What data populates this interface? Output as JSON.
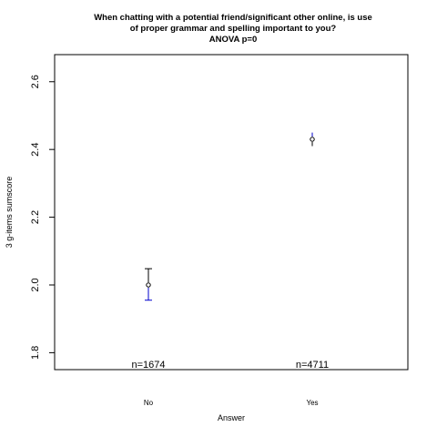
{
  "chart_data": {
    "type": "scatter",
    "title_lines": [
      "When chatting with a potential friend/significant other online, is use",
      "of proper grammar and spelling important to you?",
      "ANOVA p=0"
    ],
    "xlabel": "Answer",
    "ylabel": "3 g-items sumscore",
    "categories": [
      "No",
      "Yes"
    ],
    "means": [
      2.0,
      2.43
    ],
    "ci_lower": [
      1.955,
      2.41
    ],
    "ci_upper": [
      2.048,
      2.45
    ],
    "n_labels": [
      "n=1674",
      "n=4711"
    ],
    "ylim": [
      1.75,
      2.68
    ],
    "yticks": [
      1.8,
      2.0,
      2.2,
      2.4,
      2.6
    ],
    "ytick_labels": [
      "1.8",
      "2.0",
      "2.2",
      "2.4",
      "2.6"
    ],
    "grid": false,
    "legend": "none",
    "colors": {
      "error_bar": "#0000cc",
      "marker": "#000000",
      "axis": "#000000"
    }
  }
}
